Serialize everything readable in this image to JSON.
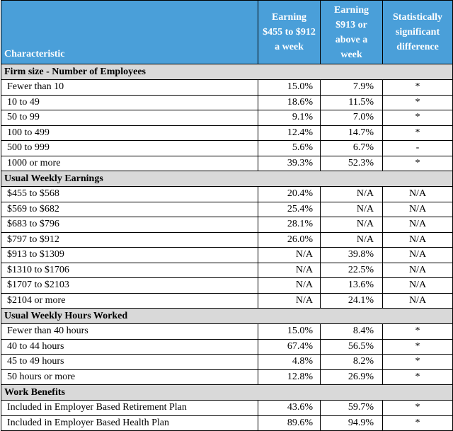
{
  "header": {
    "characteristic": "Characteristic",
    "col1": "Earning $455 to $912 a week",
    "col2": "Earning $913 or above a week",
    "col3": "Statistically significant difference"
  },
  "sections": [
    {
      "title": "Firm size - Number of Employees",
      "rows": [
        [
          "Fewer than 10",
          "15.0%",
          "7.9%",
          "*"
        ],
        [
          "10 to 49",
          "18.6%",
          "11.5%",
          "*"
        ],
        [
          "50 to 99",
          "9.1%",
          "7.0%",
          "*"
        ],
        [
          "100 to 499",
          "12.4%",
          "14.7%",
          "*"
        ],
        [
          "500 to 999",
          "5.6%",
          "6.7%",
          "-"
        ],
        [
          "1000 or more",
          "39.3%",
          "52.3%",
          "*"
        ]
      ]
    },
    {
      "title": "Usual Weekly Earnings",
      "rows": [
        [
          "$455 to $568",
          "20.4%",
          "N/A",
          "N/A"
        ],
        [
          "$569 to $682",
          "25.4%",
          "N/A",
          "N/A"
        ],
        [
          "$683 to $796",
          "28.1%",
          "N/A",
          "N/A"
        ],
        [
          "$797 to $912",
          "26.0%",
          "N/A",
          "N/A"
        ],
        [
          "$913 to $1309",
          "N/A",
          "39.8%",
          "N/A"
        ],
        [
          "$1310 to $1706",
          "N/A",
          "22.5%",
          "N/A"
        ],
        [
          "$1707 to $2103",
          "N/A",
          "13.6%",
          "N/A"
        ],
        [
          "$2104 or more",
          "N/A",
          "24.1%",
          "N/A"
        ]
      ]
    },
    {
      "title": "Usual Weekly Hours Worked",
      "rows": [
        [
          "Fewer than 40 hours",
          "15.0%",
          "8.4%",
          "*"
        ],
        [
          "40 to 44 hours",
          "67.4%",
          "56.5%",
          "*"
        ],
        [
          "45 to 49 hours",
          "4.8%",
          "8.2%",
          "*"
        ],
        [
          "50 hours or more",
          "12.8%",
          "26.9%",
          "*"
        ]
      ]
    },
    {
      "title": "Work Benefits",
      "rows": [
        [
          "Included in Employer Based Retirement Plan",
          "43.6%",
          "59.7%",
          "*"
        ],
        [
          "Included in Employer Based Health Plan",
          "89.6%",
          "94.9%",
          "*"
        ]
      ]
    }
  ]
}
